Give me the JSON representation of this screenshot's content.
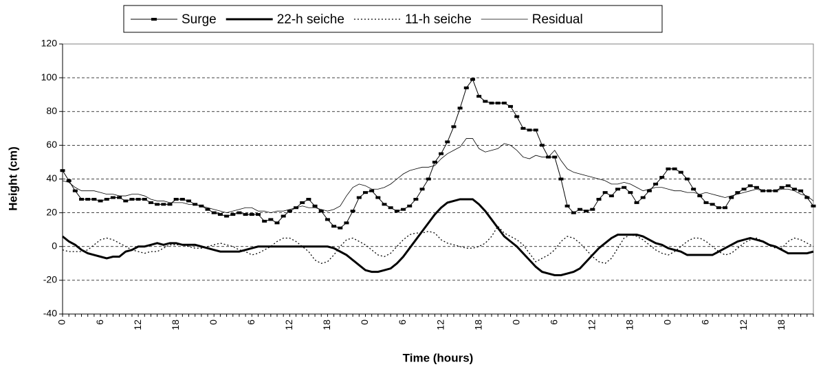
{
  "chart_data": {
    "type": "line",
    "x_label": "Time (hours)",
    "y_label": "Height (cm)",
    "categories": [
      "0",
      null,
      null,
      null,
      null,
      null,
      "6",
      null,
      null,
      null,
      null,
      null,
      "12",
      null,
      null,
      null,
      null,
      null,
      "18",
      null,
      null,
      null,
      null,
      null,
      "0",
      null,
      null,
      null,
      null,
      null,
      "6",
      null,
      null,
      null,
      null,
      null,
      "12",
      null,
      null,
      null,
      null,
      null,
      "18",
      null,
      null,
      null,
      null,
      null,
      "0",
      null,
      null,
      null,
      null,
      null,
      "6",
      null,
      null,
      null,
      null,
      null,
      "12",
      null,
      null,
      null,
      null,
      null,
      "18",
      null,
      null,
      null,
      null,
      null,
      "0",
      null,
      null,
      null,
      null,
      null,
      "6",
      null,
      null,
      null,
      null,
      null,
      "12",
      null,
      null,
      null,
      null,
      null,
      "18",
      null,
      null,
      null,
      null,
      null,
      "0",
      null,
      null,
      null,
      null,
      null,
      "6",
      null,
      null,
      null,
      null,
      null,
      "12",
      null,
      null,
      null,
      null,
      null,
      "18",
      null,
      null,
      null,
      null,
      null
    ],
    "ylim": [
      -40,
      120
    ],
    "yticks": [
      -40,
      -20,
      0,
      20,
      40,
      60,
      80,
      100,
      120
    ],
    "grid": true,
    "series": [
      {
        "name": "Surge",
        "color": "#000000",
        "width": 1,
        "dash": "none",
        "marker": "dash",
        "values": [
          45,
          39,
          33,
          28,
          28,
          28,
          27,
          28,
          29,
          29,
          27,
          28,
          28,
          28,
          26,
          25,
          25,
          25,
          28,
          28,
          27,
          25,
          24,
          22,
          20,
          19,
          18,
          19,
          20,
          19,
          19,
          19,
          15,
          16,
          14,
          18,
          21,
          23,
          26,
          28,
          24,
          21,
          16,
          12,
          11,
          14,
          21,
          29,
          32,
          33,
          29,
          25,
          23,
          21,
          22,
          24,
          28,
          34,
          40,
          50,
          55,
          62,
          71,
          82,
          94,
          99,
          89,
          86,
          85,
          85,
          85,
          83,
          77,
          70,
          69,
          69,
          60,
          53,
          53,
          40,
          24,
          20,
          22,
          21,
          22,
          28,
          32,
          30,
          34,
          35,
          32,
          26,
          29,
          33,
          37,
          41,
          46,
          46,
          44,
          40,
          34,
          30,
          26,
          25,
          23,
          23,
          29,
          32,
          34,
          36,
          35,
          33,
          33,
          33,
          35,
          36,
          34,
          33,
          29,
          24
        ]
      },
      {
        "name": "22-h seiche",
        "color": "#000000",
        "width": 3,
        "dash": "none",
        "marker": "none",
        "values": [
          6,
          3,
          1,
          -2,
          -4,
          -5,
          -6,
          -7,
          -6,
          -6,
          -3,
          -2,
          0,
          0,
          1,
          2,
          1,
          2,
          2,
          1,
          1,
          1,
          0,
          -1,
          -2,
          -3,
          -3,
          -3,
          -3,
          -2,
          -1,
          0,
          0,
          0,
          0,
          0,
          0,
          0,
          0,
          0,
          0,
          0,
          0,
          -1,
          -3,
          -5,
          -8,
          -11,
          -14,
          -15,
          -15,
          -14,
          -13,
          -10,
          -6,
          -1,
          4,
          9,
          14,
          19,
          23,
          26,
          27,
          28,
          28,
          28,
          25,
          21,
          16,
          11,
          6,
          3,
          0,
          -4,
          -8,
          -12,
          -15,
          -16,
          -17,
          -17,
          -16,
          -15,
          -13,
          -9,
          -5,
          -1,
          2,
          5,
          7,
          7,
          7,
          7,
          6,
          4,
          2,
          1,
          -1,
          -2,
          -3,
          -5,
          -5,
          -5,
          -5,
          -5,
          -3,
          -1,
          1,
          3,
          4,
          5,
          4,
          3,
          1,
          0,
          -2,
          -4,
          -4,
          -4,
          -4,
          -3
        ]
      },
      {
        "name": "11-h seiche",
        "color": "#000000",
        "width": 1.3,
        "dash": "2,3",
        "marker": "none",
        "values": [
          -2,
          -3,
          -3,
          -3,
          -2,
          1,
          4,
          5,
          4,
          2,
          0,
          -2,
          -3,
          -4,
          -3,
          -3,
          -1,
          1,
          1,
          1,
          0,
          -1,
          -1,
          0,
          1,
          2,
          1,
          0,
          -2,
          -3,
          -5,
          -4,
          -2,
          0,
          3,
          5,
          5,
          3,
          0,
          -3,
          -8,
          -10,
          -9,
          -5,
          0,
          4,
          5,
          3,
          1,
          -2,
          -5,
          -6,
          -4,
          0,
          4,
          7,
          8,
          8,
          9,
          8,
          4,
          2,
          1,
          0,
          -1,
          -1,
          0,
          2,
          6,
          12,
          8,
          6,
          4,
          1,
          -4,
          -9,
          -7,
          -5,
          -2,
          3,
          6,
          5,
          2,
          -2,
          -6,
          -9,
          -10,
          -7,
          -1,
          5,
          7,
          6,
          4,
          1,
          -2,
          -4,
          -5,
          -3,
          0,
          3,
          5,
          5,
          3,
          0,
          -3,
          -5,
          -4,
          -1,
          2,
          4,
          5,
          3,
          1,
          -1,
          -1,
          3,
          5,
          4,
          2,
          0
        ]
      },
      {
        "name": "Residual",
        "color": "#000000",
        "width": 0.8,
        "dash": "none",
        "marker": "none",
        "values": [
          39,
          38,
          35,
          33,
          33,
          33,
          32,
          31,
          31,
          30,
          30,
          31,
          31,
          30,
          28,
          27,
          27,
          26,
          26,
          26,
          25,
          25,
          24,
          23,
          22,
          21,
          20,
          21,
          22,
          23,
          23,
          21,
          21,
          20,
          21,
          21,
          22,
          23,
          24,
          23,
          23,
          22,
          21,
          22,
          24,
          30,
          35,
          37,
          36,
          34,
          34,
          35,
          37,
          40,
          43,
          45,
          46,
          47,
          47,
          48,
          52,
          55,
          57,
          59,
          64,
          64,
          58,
          56,
          57,
          58,
          61,
          60,
          57,
          53,
          52,
          54,
          53,
          53,
          57,
          51,
          46,
          44,
          43,
          42,
          41,
          40,
          39,
          37,
          37,
          38,
          37,
          35,
          33,
          34,
          35,
          35,
          34,
          33,
          33,
          32,
          32,
          31,
          32,
          31,
          30,
          29,
          30,
          31,
          32,
          33,
          34,
          33,
          33,
          33,
          34,
          34,
          33,
          31,
          30,
          27
        ]
      }
    ]
  }
}
